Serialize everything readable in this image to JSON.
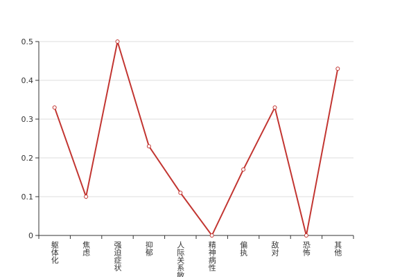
{
  "chart_data": {
    "type": "line",
    "categories": [
      "躯体化",
      "焦虑",
      "强迫症状",
      "抑郁",
      "人际关系敏感",
      "精神病性",
      "偏执",
      "敌对",
      "恐怖",
      "其他"
    ],
    "values": [
      0.33,
      0.1,
      0.5,
      0.23,
      0.11,
      0,
      0.17,
      0.33,
      0,
      0.43
    ],
    "color": "#c23531",
    "ylim": [
      0,
      0.5
    ],
    "yticks": [
      0,
      0.1,
      0.2,
      0.3,
      0.4,
      0.5
    ],
    "grid": true
  }
}
